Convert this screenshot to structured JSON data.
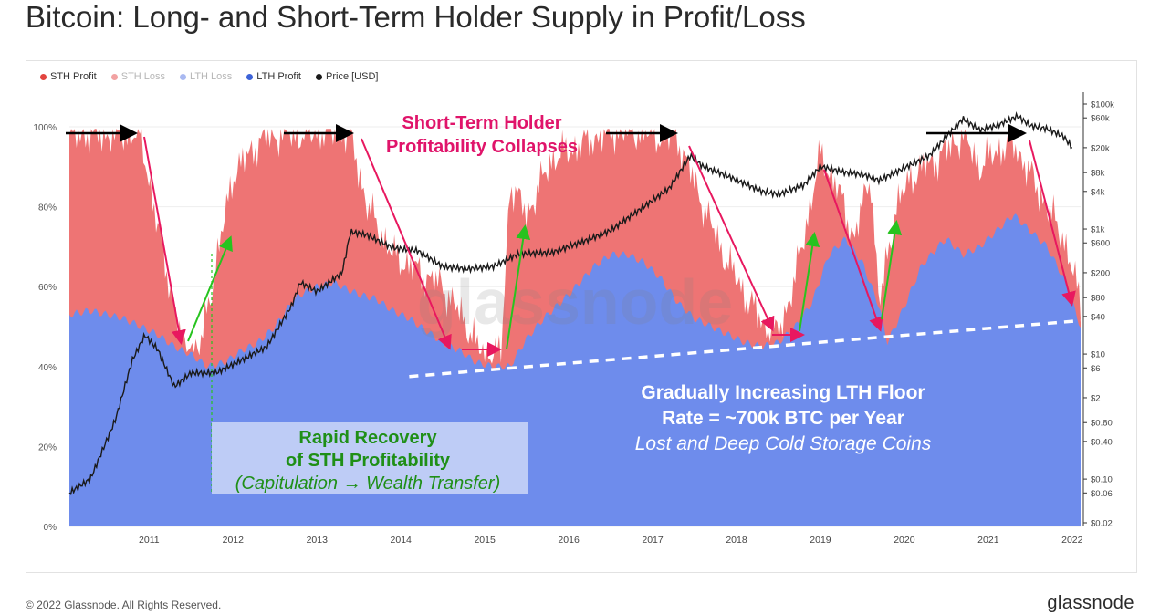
{
  "title": "Bitcoin: Long- and Short-Term Holder Supply in Profit/Loss",
  "footer": "© 2022 Glassnode. All Rights Reserved.",
  "brand": "glassnode",
  "watermark": "glassnode",
  "colors": {
    "sth_profit": "#ee7474",
    "sth_loss": "#f2a2a2",
    "lth_loss": "#a9b9f1",
    "lth_profit": "#6e8cec",
    "price": "#1a1a1a",
    "arrow_red": "#e8185f",
    "arrow_green": "#27c31f",
    "arrow_black": "#000000",
    "annotation_pink": "#e0146a",
    "annotation_green": "#1f8f17"
  },
  "legend": [
    {
      "label": "STH Profit",
      "color": "#e2443f",
      "muted": false
    },
    {
      "label": "STH Loss",
      "color": "#f2a2a2",
      "muted": true
    },
    {
      "label": "LTH Loss",
      "color": "#a9b9f1",
      "muted": true
    },
    {
      "label": "LTH Profit",
      "color": "#3d63d8",
      "muted": false
    },
    {
      "label": "Price [USD]",
      "color": "#1a1a1a",
      "muted": false
    }
  ],
  "annotations": {
    "collapse_line1": "Short-Term Holder",
    "collapse_line2": "Profitability Collapses",
    "recovery_line1": "Rapid Recovery",
    "recovery_line2": "of STH Profitability",
    "recovery_line3": "(Capitulation → Wealth Transfer)",
    "floor_line1": "Gradually Increasing LTH Floor",
    "floor_line2": "Rate = ~700k BTC per Year",
    "floor_line3": "Lost and Deep Cold Storage Coins"
  },
  "chart_data": {
    "type": "area",
    "x_ticks": [
      "2011",
      "2012",
      "2013",
      "2014",
      "2015",
      "2016",
      "2017",
      "2018",
      "2019",
      "2020",
      "2021",
      "2022"
    ],
    "y_left_ticks": [
      "0%",
      "20%",
      "40%",
      "60%",
      "80%",
      "100%"
    ],
    "y_left_range": [
      0,
      100
    ],
    "y_right_ticks": [
      "$0.02",
      "$0.06",
      "$0.10",
      "$0.40",
      "$0.80",
      "$2",
      "$6",
      "$10",
      "$40",
      "$80",
      "$200",
      "$600",
      "$1k",
      "$4k",
      "$8k",
      "$20k",
      "$60k",
      "$100k"
    ],
    "y_right_scale": "log",
    "x_range": [
      2010.55,
      2022.6
    ],
    "lth_supply_pct": {
      "x": [
        2010.55,
        2010.8,
        2011.0,
        2011.2,
        2011.4,
        2011.6,
        2011.8,
        2011.9,
        2012.0,
        2012.2,
        2012.4,
        2012.6,
        2012.8,
        2013.0,
        2013.2,
        2013.3,
        2013.5,
        2013.7,
        2013.9,
        2014.0,
        2014.2,
        2014.4,
        2014.6,
        2014.8,
        2015.0,
        2015.2,
        2015.4,
        2015.6,
        2015.8,
        2016.0,
        2016.2,
        2016.5,
        2016.8,
        2017.0,
        2017.2,
        2017.4,
        2017.6,
        2017.8,
        2018.0,
        2018.2,
        2018.4,
        2018.6,
        2018.8,
        2019.0,
        2019.2,
        2019.4,
        2019.6,
        2019.8,
        2020.0,
        2020.2,
        2020.3,
        2020.5,
        2020.7,
        2020.9,
        2021.0,
        2021.2,
        2021.4,
        2021.6,
        2021.8,
        2022.0,
        2022.2,
        2022.4,
        2022.6
      ],
      "values": [
        53,
        54,
        53,
        52,
        50,
        48,
        45,
        44,
        43,
        40,
        41,
        44,
        46,
        50,
        56,
        58,
        60,
        61,
        59,
        58,
        57,
        54,
        52,
        49,
        46,
        44,
        41,
        40,
        40,
        47,
        52,
        58,
        65,
        68,
        68,
        66,
        62,
        56,
        52,
        50,
        48,
        46,
        45,
        46,
        50,
        56,
        68,
        72,
        66,
        55,
        46,
        55,
        65,
        70,
        72,
        68,
        70,
        74,
        78,
        74,
        70,
        62,
        50
      ]
    },
    "sth_profit_top_pct": {
      "x": [
        2010.55,
        2011.0,
        2011.4,
        2011.6,
        2011.9,
        2012.1,
        2012.5,
        2012.8,
        2013.0,
        2013.3,
        2013.7,
        2013.9,
        2014.1,
        2014.4,
        2014.7,
        2015.0,
        2015.3,
        2015.5,
        2015.7,
        2015.8,
        2016.0,
        2016.3,
        2016.6,
        2016.9,
        2017.2,
        2017.5,
        2017.8,
        2018.0,
        2018.3,
        2018.6,
        2018.9,
        2019.0,
        2019.2,
        2019.5,
        2019.7,
        2019.9,
        2020.1,
        2020.2,
        2020.4,
        2020.6,
        2020.9,
        2021.2,
        2021.4,
        2021.6,
        2021.8,
        2022.0,
        2022.2,
        2022.4,
        2022.6
      ],
      "values": [
        98,
        98,
        98,
        75,
        45,
        44,
        88,
        96,
        98,
        98,
        99,
        98,
        80,
        68,
        64,
        60,
        50,
        42,
        44,
        86,
        78,
        92,
        95,
        98,
        99,
        98,
        97,
        86,
        70,
        58,
        48,
        48,
        62,
        93,
        85,
        72,
        88,
        55,
        80,
        88,
        92,
        98,
        90,
        94,
        96,
        88,
        80,
        72,
        56
      ]
    },
    "lth_floor_trend": {
      "x": [
        2014.6,
        2022.6
      ],
      "values": [
        37.5,
        51.5
      ]
    },
    "price_usd": {
      "x": [
        2010.55,
        2010.8,
        2011.1,
        2011.3,
        2011.45,
        2011.6,
        2011.8,
        2012.0,
        2012.3,
        2012.6,
        2012.9,
        2013.2,
        2013.3,
        2013.5,
        2013.8,
        2013.9,
        2014.1,
        2014.4,
        2014.7,
        2015.0,
        2015.3,
        2015.6,
        2015.9,
        2016.3,
        2016.7,
        2017.0,
        2017.4,
        2017.7,
        2017.95,
        2018.1,
        2018.4,
        2018.8,
        2019.0,
        2019.3,
        2019.5,
        2019.8,
        2020.0,
        2020.2,
        2020.5,
        2020.8,
        2021.0,
        2021.2,
        2021.4,
        2021.6,
        2021.85,
        2022.0,
        2022.2,
        2022.4,
        2022.5
      ],
      "values": [
        0.06,
        0.1,
        0.9,
        8,
        20,
        12,
        3,
        5,
        5,
        8,
        13,
        60,
        140,
        100,
        200,
        900,
        800,
        500,
        450,
        250,
        230,
        250,
        400,
        420,
        650,
        950,
        2300,
        4500,
        15000,
        10000,
        7000,
        4000,
        3600,
        5000,
        10000,
        8000,
        7500,
        6000,
        9500,
        15000,
        30000,
        58000,
        38000,
        45000,
        64000,
        45000,
        40000,
        30000,
        20000
      ]
    }
  }
}
